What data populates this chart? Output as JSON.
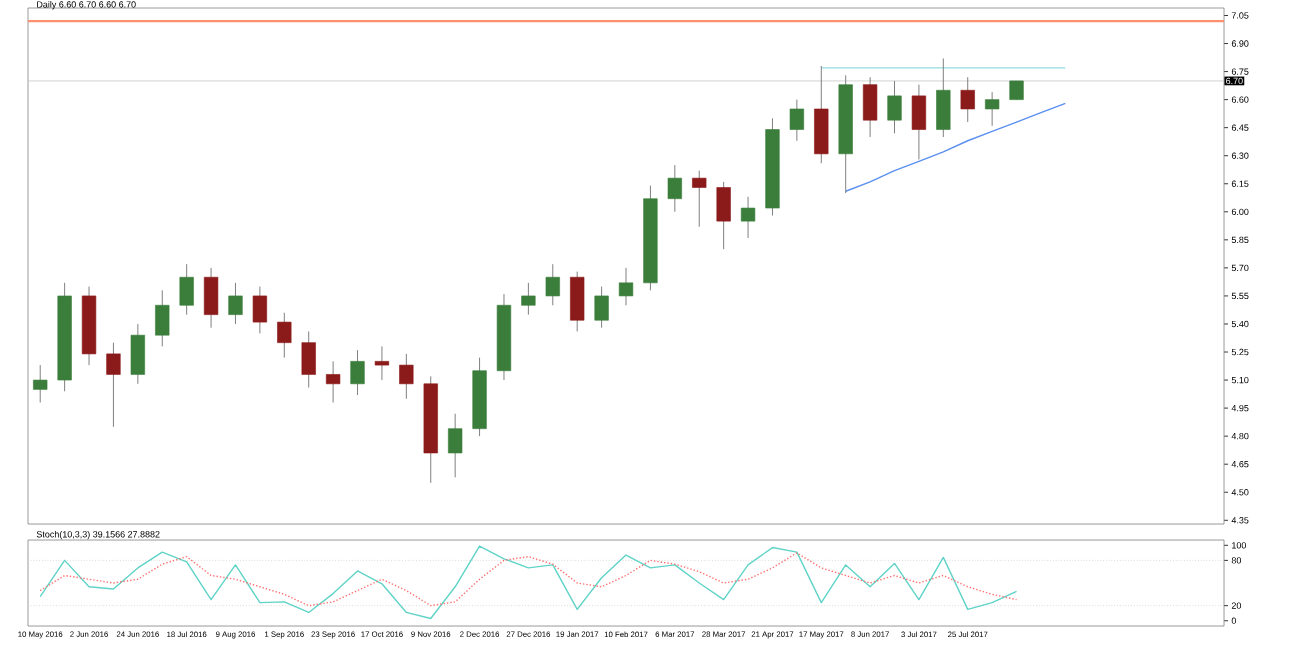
{
  "chart_data": [
    {
      "type": "candlestick",
      "title": "Daily 6.60 6.70 6.60 6.70",
      "tick_labels": "y",
      "marker": "none",
      "categories": [
        null,
        null,
        null,
        null,
        null,
        null,
        null,
        null,
        null,
        null,
        null,
        null,
        null,
        null,
        null,
        null,
        null,
        null,
        null,
        null,
        null,
        null,
        null,
        null,
        null,
        null,
        null,
        null,
        null,
        null,
        null,
        null,
        null,
        null,
        null,
        null,
        null,
        null,
        null,
        null,
        null,
        null,
        null,
        null,
        null,
        null,
        null,
        null,
        null
      ],
      "ohlc": [
        [
          5.05,
          5.18,
          4.98,
          5.1
        ],
        [
          5.1,
          5.62,
          5.04,
          5.55
        ],
        [
          5.55,
          5.6,
          5.18,
          5.24
        ],
        [
          5.24,
          5.3,
          4.85,
          5.13
        ],
        [
          5.13,
          5.4,
          5.08,
          5.34
        ],
        [
          5.34,
          5.58,
          5.28,
          5.5
        ],
        [
          5.5,
          5.72,
          5.45,
          5.65
        ],
        [
          5.65,
          5.7,
          5.38,
          5.45
        ],
        [
          5.45,
          5.62,
          5.4,
          5.55
        ],
        [
          5.55,
          5.6,
          5.35,
          5.41
        ],
        [
          5.41,
          5.46,
          5.22,
          5.3
        ],
        [
          5.3,
          5.36,
          5.06,
          5.13
        ],
        [
          5.13,
          5.2,
          4.98,
          5.08
        ],
        [
          5.08,
          5.26,
          5.02,
          5.2
        ],
        [
          5.2,
          5.28,
          5.1,
          5.18
        ],
        [
          5.18,
          5.24,
          5.0,
          5.08
        ],
        [
          5.08,
          5.12,
          4.55,
          4.71
        ],
        [
          4.71,
          4.92,
          4.58,
          4.84
        ],
        [
          4.84,
          5.22,
          4.8,
          5.15
        ],
        [
          5.15,
          5.56,
          5.1,
          5.5
        ],
        [
          5.5,
          5.62,
          5.45,
          5.55
        ],
        [
          5.55,
          5.72,
          5.5,
          5.65
        ],
        [
          5.65,
          5.68,
          5.36,
          5.42
        ],
        [
          5.42,
          5.6,
          5.38,
          5.55
        ],
        [
          5.55,
          5.7,
          5.5,
          5.62
        ],
        [
          5.62,
          6.14,
          5.58,
          6.07
        ],
        [
          6.07,
          6.25,
          6.0,
          6.18
        ],
        [
          6.18,
          6.22,
          5.92,
          6.13
        ],
        [
          6.13,
          6.16,
          5.8,
          5.95
        ],
        [
          5.95,
          6.08,
          5.86,
          6.02
        ],
        [
          6.02,
          6.5,
          5.98,
          6.44
        ],
        [
          6.44,
          6.6,
          6.38,
          6.55
        ],
        [
          6.55,
          6.78,
          6.26,
          6.31
        ],
        [
          6.31,
          6.73,
          6.1,
          6.68
        ],
        [
          6.68,
          6.72,
          6.4,
          6.49
        ],
        [
          6.49,
          6.7,
          6.42,
          6.62
        ],
        [
          6.62,
          6.68,
          6.28,
          6.44
        ],
        [
          6.44,
          6.82,
          6.4,
          6.65
        ],
        [
          6.65,
          6.72,
          6.48,
          6.55
        ],
        [
          6.55,
          6.64,
          6.46,
          6.6
        ],
        [
          6.6,
          6.7,
          6.6,
          6.7
        ],
        null,
        null,
        null,
        null,
        null,
        null,
        null,
        null
      ],
      "colors": [
        "#3b7d3b",
        "#3b7d3b",
        "#8b1a1a",
        "#8b1a1a",
        "#3b7d3b",
        "#3b7d3b",
        "#3b7d3b",
        "#8b1a1a",
        "#3b7d3b",
        "#8b1a1a",
        "#8b1a1a",
        "#8b1a1a",
        "#8b1a1a",
        "#3b7d3b",
        "#8b1a1a",
        "#8b1a1a",
        "#8b1a1a",
        "#3b7d3b",
        "#3b7d3b",
        "#3b7d3b",
        "#3b7d3b",
        "#3b7d3b",
        "#8b1a1a",
        "#3b7d3b",
        "#3b7d3b",
        "#3b7d3b",
        "#3b7d3b",
        "#8b1a1a",
        "#8b1a1a",
        "#3b7d3b",
        "#3b7d3b",
        "#3b7d3b",
        "#8b1a1a",
        "#3b7d3b",
        "#8b1a1a",
        "#3b7d3b",
        "#8b1a1a",
        "#3b7d3b",
        "#8b1a1a",
        "#3b7d3b",
        "#3b7d3b",
        null,
        null,
        null,
        null,
        null,
        null,
        null,
        null
      ],
      "series": [
        {
          "type": "line",
          "color": "#8fdde0",
          "values": [
            null,
            null,
            null,
            null,
            null,
            null,
            null,
            null,
            null,
            null,
            null,
            null,
            null,
            null,
            null,
            null,
            null,
            null,
            null,
            null,
            null,
            null,
            null,
            null,
            null,
            null,
            null,
            null,
            null,
            null,
            null,
            null,
            6.77,
            6.77,
            6.77,
            6.77,
            6.77,
            6.77,
            6.77,
            6.77,
            6.77,
            6.77,
            6.77,
            null,
            null,
            null,
            null,
            null,
            null
          ]
        },
        {
          "type": "line",
          "color": "#5b8ff0",
          "values": [
            null,
            null,
            null,
            null,
            null,
            null,
            null,
            null,
            null,
            null,
            null,
            null,
            null,
            null,
            null,
            null,
            null,
            null,
            null,
            null,
            null,
            null,
            null,
            null,
            null,
            null,
            null,
            null,
            null,
            null,
            null,
            null,
            null,
            6.11,
            6.16,
            6.22,
            6.27,
            6.32,
            6.38,
            6.43,
            6.48,
            6.53,
            6.58,
            null,
            null,
            null,
            null,
            null,
            null
          ]
        }
      ],
      "ylim": [
        4.33,
        7.09
      ],
      "yticks": [
        4.35,
        {
          "value": 4.5,
          "label": "4.50"
        },
        4.65,
        {
          "value": 4.8,
          "label": "4.80"
        },
        4.95,
        {
          "value": 5.1,
          "label": "5.10"
        },
        5.25,
        {
          "value": 5.4,
          "label": "5.40"
        },
        5.55,
        {
          "value": 5.7,
          "label": "5.70"
        },
        5.85,
        {
          "value": 6.0,
          "label": "6.00"
        },
        6.15,
        {
          "value": 6.3,
          "label": "6.30"
        },
        6.45,
        {
          "value": 6.6,
          "label": "6.60"
        },
        6.75,
        {
          "value": 6.9,
          "label": "6.90"
        },
        7.05
      ],
      "ref_lines": [
        {
          "axis": "y",
          "value": 7.02,
          "color": "#ff9070"
        },
        {
          "axis": "y",
          "value": 6.7,
          "label": "6.70",
          "color": "#c8c8c8"
        }
      ]
    },
    {
      "type": "line",
      "title": "Stoch(10,3,3) 39.1566 27.8882",
      "marker": "none",
      "categories": [
        "10 May 2016",
        null,
        "2 Jun 2016",
        null,
        "24 Jun 2016",
        null,
        "18 Jul 2016",
        null,
        "9 Aug 2016",
        null,
        "1 Sep 2016",
        null,
        "23 Sep 2016",
        null,
        "17 Oct 2016",
        null,
        "9 Nov 2016",
        null,
        "2 Dec 2016",
        null,
        "27 Dec 2016",
        null,
        "19 Jan 2017",
        null,
        "10 Feb 2017",
        null,
        "6 Mar 2017",
        null,
        "28 Mar 2017",
        null,
        "21 Apr 2017",
        null,
        "17 May 2017",
        null,
        "8 Jun 2017",
        null,
        "3 Jul 2017",
        null,
        "25 Jul 2017",
        null,
        null,
        null,
        null,
        null,
        null,
        null,
        null,
        null,
        null
      ],
      "series": [
        {
          "color": "#5fd3c7",
          "line_style": "solid",
          "values": [
            32,
            80,
            45,
            42,
            70,
            91,
            78,
            28,
            74,
            24,
            25,
            11,
            36,
            66,
            49,
            11,
            3,
            45,
            99,
            82,
            70,
            74,
            15,
            57,
            87,
            70,
            74,
            50,
            28,
            74,
            97,
            91,
            24,
            74,
            45,
            76,
            28,
            84,
            15,
            24,
            39,
            null,
            null,
            null,
            null,
            null,
            null,
            null,
            null
          ]
        },
        {
          "color": "#ff6f6f",
          "line_style": "dotted",
          "values": [
            40,
            60,
            55,
            50,
            55,
            75,
            85,
            60,
            55,
            45,
            35,
            20,
            25,
            40,
            55,
            40,
            20,
            25,
            55,
            80,
            85,
            75,
            50,
            45,
            60,
            80,
            75,
            65,
            50,
            55,
            70,
            90,
            70,
            60,
            50,
            60,
            50,
            60,
            45,
            35,
            28,
            null,
            null,
            null,
            null,
            null,
            null,
            null,
            null
          ]
        }
      ],
      "ylim": [
        -7,
        107
      ],
      "yticks": [
        0,
        20,
        80,
        100
      ],
      "ref_lines": [
        {
          "axis": "y",
          "value": 80,
          "color": "#c8c8c8",
          "line_style": "dotted"
        },
        {
          "axis": "y",
          "value": 20,
          "color": "#c8c8c8",
          "line_style": "dotted"
        }
      ]
    }
  ]
}
